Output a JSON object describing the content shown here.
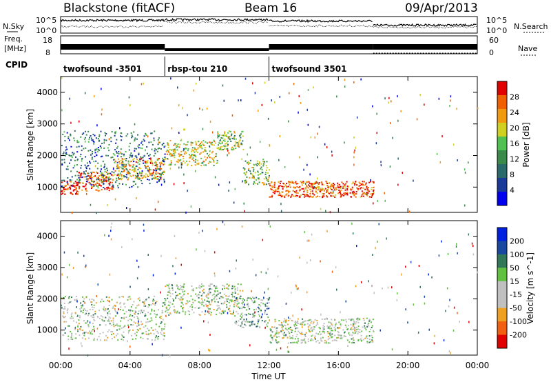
{
  "header": {
    "station": "Blackstone (fitACF)",
    "beam": "Beam 16",
    "date": "09/Apr/2013"
  },
  "side_labels": {
    "nsky": "N.Sky",
    "nsky_top": "10^5",
    "nsky_bottom": "10^0",
    "freq_line1": "Freq.",
    "freq_line2": "[MHz]",
    "freq_top": "18",
    "freq_bottom": "8",
    "cpid": "CPID",
    "nsearch": "N.Search",
    "nsearch_top": "10^5",
    "nsearch_bottom": "10^0",
    "nave": "Nave",
    "nave_top": "60",
    "nave_bottom": "0"
  },
  "cpid_segments": [
    {
      "label": "twofsound -3501",
      "start_hour": 0,
      "end_hour": 6
    },
    {
      "label": "rbsp-tou 210",
      "start_hour": 6,
      "end_hour": 12
    },
    {
      "label": "twofsound 3501",
      "start_hour": 12,
      "end_hour": 24
    }
  ],
  "colors": {
    "power": [
      "#0000ee",
      "#1a3a9a",
      "#2a6a6a",
      "#3a8a4a",
      "#50c050",
      "#d0d020",
      "#f09a10",
      "#f06000",
      "#e00000"
    ],
    "velocity": [
      "#0020e0",
      "#1848a0",
      "#307858",
      "#60c040",
      "#c0c0c0",
      "#c0c0c0",
      "#f0a020",
      "#f06010",
      "#e00000"
    ]
  },
  "chart_data": [
    {
      "type": "heatmap",
      "name": "power",
      "ylabel": "Slant Range [km]",
      "y_ticks": [
        1000,
        2000,
        3000,
        4000
      ],
      "ylim": [
        200,
        4500
      ],
      "xlim": [
        0,
        24
      ],
      "colorbar_label": "Power [dB]",
      "colorbar_ticks": [
        "4",
        "8",
        "12",
        "16",
        "20",
        "24",
        "28"
      ],
      "colorbar_range": [
        0,
        32
      ],
      "bands": [
        {
          "start_hour": 0.0,
          "end_hour": 1.0,
          "center_km": 1000,
          "width_km": 220,
          "level": 8
        },
        {
          "start_hour": 1.0,
          "end_hour": 3.0,
          "center_km": 1200,
          "width_km": 300,
          "level": 7
        },
        {
          "start_hour": 3.0,
          "end_hour": 6.0,
          "center_km": 1600,
          "width_km": 350,
          "level": 6
        },
        {
          "start_hour": 6.0,
          "end_hour": 9.0,
          "center_km": 2100,
          "width_km": 400,
          "level": 5
        },
        {
          "start_hour": 9.0,
          "end_hour": 10.5,
          "center_km": 2500,
          "width_km": 300,
          "level": 4
        },
        {
          "start_hour": 10.5,
          "end_hour": 12.0,
          "center_km": 1500,
          "width_km": 400,
          "level": 4
        },
        {
          "start_hour": 12.0,
          "end_hour": 18.0,
          "center_km": 950,
          "width_km": 250,
          "level": 7
        },
        {
          "start_hour": 0.0,
          "end_hour": 6.0,
          "center_km": 1900,
          "width_km": 900,
          "level": 2
        }
      ]
    },
    {
      "type": "heatmap",
      "name": "velocity",
      "ylabel": "Slant Range [km]",
      "y_ticks": [
        1000,
        2000,
        3000,
        4000
      ],
      "ylim": [
        200,
        4500
      ],
      "xlabel": "Time UT",
      "x_ticks": [
        "00:00",
        "04:00",
        "08:00",
        "12:00",
        "16:00",
        "20:00",
        "00:00"
      ],
      "xlim": [
        0,
        24
      ],
      "colorbar_label": "Velocity [m s^-1]",
      "colorbar_ticks": [
        "200",
        "100",
        "50",
        "15",
        "-15",
        "-50",
        "-100",
        "-200"
      ],
      "bands": [
        {
          "start_hour": 0.0,
          "end_hour": 6.0,
          "center_km": 1400,
          "width_km": 700,
          "level": 4
        },
        {
          "start_hour": 6.0,
          "end_hour": 10.5,
          "center_km": 2000,
          "width_km": 500,
          "level": 4
        },
        {
          "start_hour": 10.0,
          "end_hour": 12.0,
          "center_km": 1600,
          "width_km": 500,
          "level": 3
        },
        {
          "start_hour": 12.0,
          "end_hour": 18.0,
          "center_km": 1000,
          "width_km": 400,
          "level": 4
        }
      ]
    }
  ]
}
